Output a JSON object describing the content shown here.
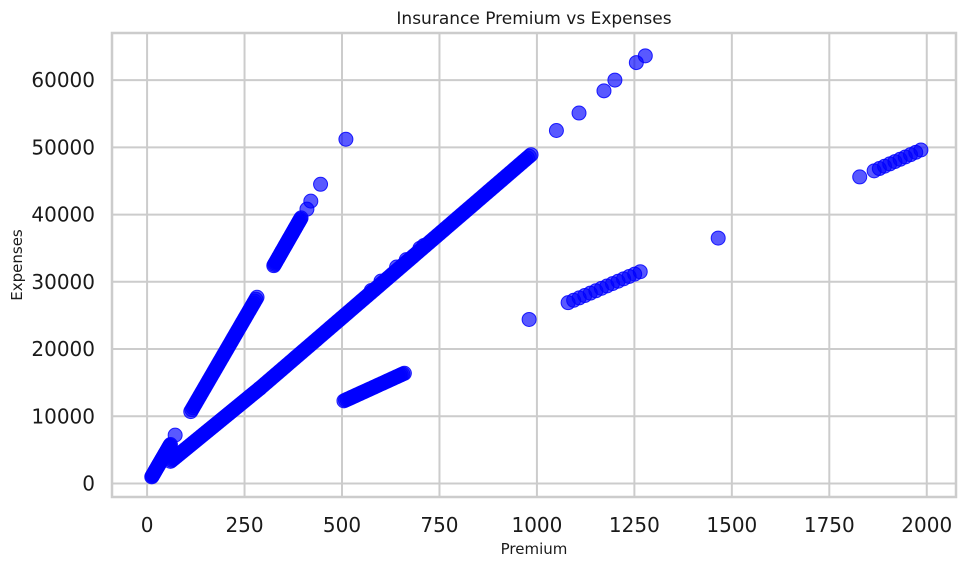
{
  "chart_data": {
    "type": "scatter",
    "title": "Insurance Premium vs Expenses",
    "xlabel": "Premium",
    "ylabel": "Expenses",
    "xlim": [
      -90,
      2075
    ],
    "ylim": [
      -2000,
      67000
    ],
    "xticks": [
      0,
      250,
      500,
      750,
      1000,
      1250,
      1500,
      1750,
      2000
    ],
    "yticks": [
      0,
      10000,
      20000,
      30000,
      40000,
      50000,
      60000
    ],
    "grid": true,
    "point_color": "#0000ff",
    "point_opacity": 0.65,
    "segments": [
      {
        "x0": 12,
        "y0": 1000,
        "x1": 60,
        "y1": 5800,
        "n": 40
      },
      {
        "x0": 60,
        "y0": 3300,
        "x1": 290,
        "y1": 14200,
        "n": 70
      },
      {
        "x0": 290,
        "y0": 14200,
        "x1": 985,
        "y1": 48900,
        "n": 150
      },
      {
        "x0": 112,
        "y0": 10700,
        "x1": 282,
        "y1": 27700,
        "n": 60
      },
      {
        "x0": 325,
        "y0": 32400,
        "x1": 395,
        "y1": 39500,
        "n": 40
      },
      {
        "x0": 505,
        "y0": 12300,
        "x1": 660,
        "y1": 16400,
        "n": 40
      },
      {
        "x0": 1080,
        "y0": 26900,
        "x1": 1265,
        "y1": 31500,
        "n": 14
      },
      {
        "x0": 1865,
        "y0": 46500,
        "x1": 1985,
        "y1": 49600,
        "n": 10
      }
    ],
    "points": [
      [
        72,
        7200
      ],
      [
        410,
        40800
      ],
      [
        420,
        42000
      ],
      [
        445,
        44500
      ],
      [
        510,
        51200
      ],
      [
        1050,
        52500
      ],
      [
        1108,
        55100
      ],
      [
        1172,
        58400
      ],
      [
        1200,
        60000
      ],
      [
        1255,
        62600
      ],
      [
        1278,
        63600
      ],
      [
        980,
        24400
      ],
      [
        1465,
        36500
      ],
      [
        1828,
        45600
      ],
      [
        640,
        32200
      ],
      [
        665,
        33300
      ],
      [
        700,
        35000
      ],
      [
        710,
        35400
      ],
      [
        600,
        30100
      ],
      [
        575,
        28700
      ]
    ]
  }
}
